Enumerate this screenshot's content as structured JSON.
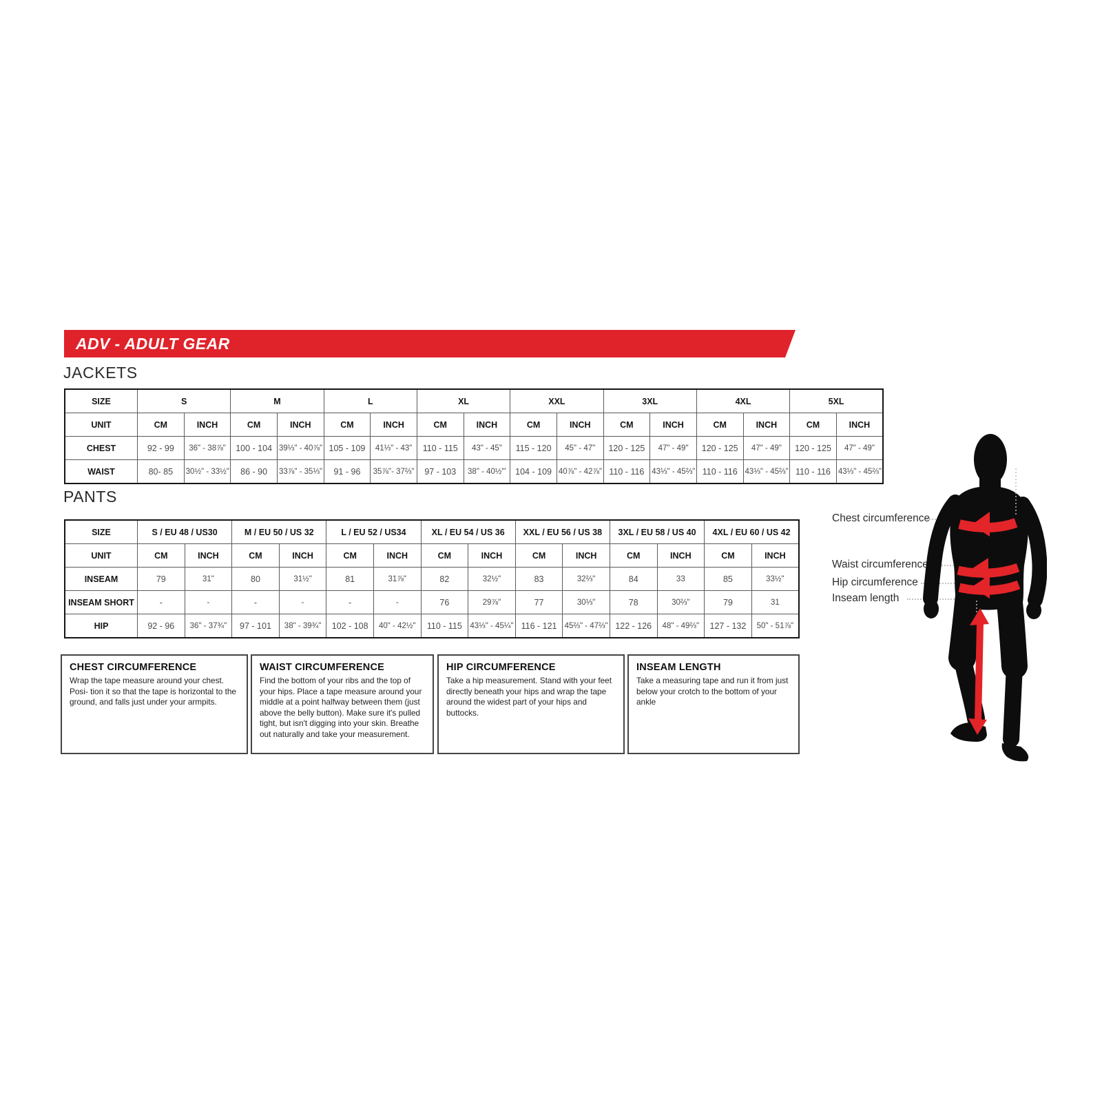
{
  "banner": {
    "title": "ADV - ADULT GEAR"
  },
  "colors": {
    "banner_red": "#e0222a",
    "arrow_red": "#e32429",
    "silhouette": "#0d0d0d"
  },
  "sections": {
    "jackets_label": "JACKETS",
    "pants_label": "PANTS"
  },
  "jackets_table": {
    "corner_label": "SIZE",
    "unit_label": "UNIT",
    "cm_label": "CM",
    "inch_label": "INCH",
    "sizes": [
      "S",
      "M",
      "L",
      "XL",
      "XXL",
      "3XL",
      "4XL",
      "5XL"
    ],
    "rows": [
      {
        "label": "CHEST",
        "values": [
          [
            "92 - 99",
            "36\" - 38⅞\""
          ],
          [
            "100 - 104",
            "39⅓\" - 40⅞\""
          ],
          [
            "105 - 109",
            "41⅓\" - 43\""
          ],
          [
            "110 - 115",
            "43\" - 45\""
          ],
          [
            "115 - 120",
            "45\" - 47\""
          ],
          [
            "120 - 125",
            "47\" - 49\""
          ],
          [
            "120 - 125",
            "47\" - 49\""
          ],
          [
            "120 - 125",
            "47\" - 49\""
          ]
        ]
      },
      {
        "label": "WAIST",
        "values": [
          [
            "80- 85",
            "30½\" - 33½\""
          ],
          [
            "86 - 90",
            "33⅞\" - 35⅓\""
          ],
          [
            "91 - 96",
            "35⅞\"- 37⅔\""
          ],
          [
            "97 - 103",
            "38\" - 40½\"'"
          ],
          [
            "104 - 109",
            "40⅞\" - 42⅞\""
          ],
          [
            "110 - 116",
            "43⅓\" - 45⅔\""
          ],
          [
            "110 - 116",
            "43⅓\" - 45⅔\""
          ],
          [
            "110 - 116",
            "43⅓\" - 45⅔\""
          ]
        ]
      }
    ]
  },
  "pants_table": {
    "corner_label": "SIZE",
    "unit_label": "UNIT",
    "cm_label": "CM",
    "inch_label": "INCH",
    "sizes": [
      "S / EU 48 / US30",
      "M / EU 50 / US 32",
      "L / EU 52 / US34",
      "XL / EU 54 / US 36",
      "XXL / EU 56 / US 38",
      "3XL / EU 58 / US 40",
      "4XL / EU 60 / US 42"
    ],
    "rows": [
      {
        "label": "INSEAM",
        "values": [
          [
            "79",
            "31\""
          ],
          [
            "80",
            "31½\""
          ],
          [
            "81",
            "31⅞\""
          ],
          [
            "82",
            "32½\""
          ],
          [
            "83",
            "32⅔\""
          ],
          [
            "84",
            "33"
          ],
          [
            "85",
            "33½\""
          ]
        ]
      },
      {
        "label": "INSEAM SHORT",
        "values": [
          [
            "-",
            "-"
          ],
          [
            "-",
            "-"
          ],
          [
            "-",
            "-"
          ],
          [
            "76",
            "29⅞\""
          ],
          [
            "77",
            "30⅓\""
          ],
          [
            "78",
            "30⅔\""
          ],
          [
            "79",
            "31"
          ]
        ]
      },
      {
        "label": "HIP",
        "values": [
          [
            "92 - 96",
            "36\" - 37¾\""
          ],
          [
            "97 - 101",
            "38\" - 39¾\""
          ],
          [
            "102 - 108",
            "40\" - 42½\""
          ],
          [
            "110 - 115",
            "43⅓\" - 45¼\""
          ],
          [
            "116 - 121",
            "45⅔\" - 47⅔\""
          ],
          [
            "122 - 126",
            "48\" - 49⅔\""
          ],
          [
            "127 - 132",
            "50\" - 51⅞\""
          ]
        ]
      }
    ]
  },
  "info_boxes": [
    {
      "title": "CHEST CIRCUMFERENCE",
      "body": "Wrap the tape measure around your chest. Posi- tion it so that the tape is horizontal to the ground, and falls just under your armpits."
    },
    {
      "title": "WAIST CIRCUMFERENCE",
      "body": "Find the bottom of your ribs and the top of your hips. Place a tape measure around your middle at a point halfway between them (just above the belly button). Make sure it's pulled tight, but isn't digging into your skin. Breathe out naturally and take your measurement."
    },
    {
      "title": "HIP CIRCUMFERENCE",
      "body": "Take a hip measurement. Stand with your feet directly beneath your hips and wrap the tape around the widest part of your hips and buttocks."
    },
    {
      "title": "INSEAM LENGTH",
      "body": "Take a measuring tape and run it from just below your crotch to the bottom of your ankle"
    }
  ],
  "figure_labels": {
    "chest": "Chest circumference",
    "waist": "Waist circumference",
    "hip": "Hip circumference",
    "inseam": "Inseam length"
  }
}
